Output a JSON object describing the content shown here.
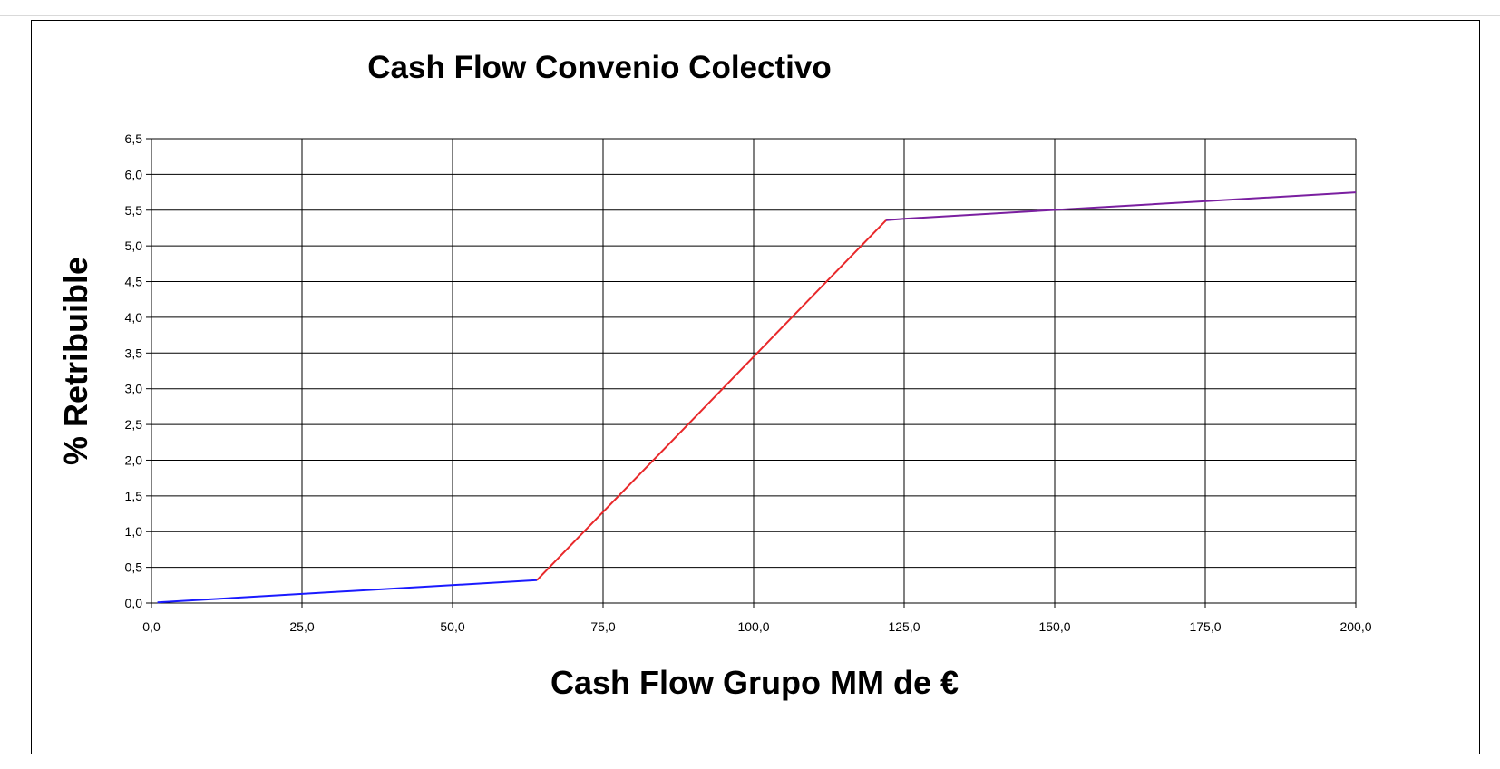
{
  "chart_data": {
    "type": "line",
    "title": "Cash Flow Convenio Colectivo",
    "xlabel": "Cash Flow Grupo MM de €",
    "ylabel": "% Retribuible",
    "xlim": [
      0,
      200
    ],
    "ylim": [
      0,
      6.5
    ],
    "grid": true,
    "x_ticks": [
      "0,0",
      "25,0",
      "50,0",
      "75,0",
      "100,0",
      "125,0",
      "150,0",
      "175,0",
      "200,0"
    ],
    "y_ticks": [
      "0,0",
      "0,5",
      "1,0",
      "1,5",
      "2,0",
      "2,5",
      "3,0",
      "3,5",
      "4,0",
      "4,5",
      "5,0",
      "5,5",
      "6,0",
      "6,5"
    ],
    "series": [
      {
        "color": "#1a1aff",
        "points": [
          [
            1,
            0.01
          ],
          [
            64,
            0.32
          ]
        ]
      },
      {
        "color": "#e8282a",
        "points": [
          [
            64,
            0.32
          ],
          [
            122,
            5.36
          ]
        ]
      },
      {
        "color": "#7a1fa0",
        "points": [
          [
            122,
            5.36
          ],
          [
            125,
            5.38
          ],
          [
            200,
            5.75
          ]
        ]
      }
    ]
  }
}
